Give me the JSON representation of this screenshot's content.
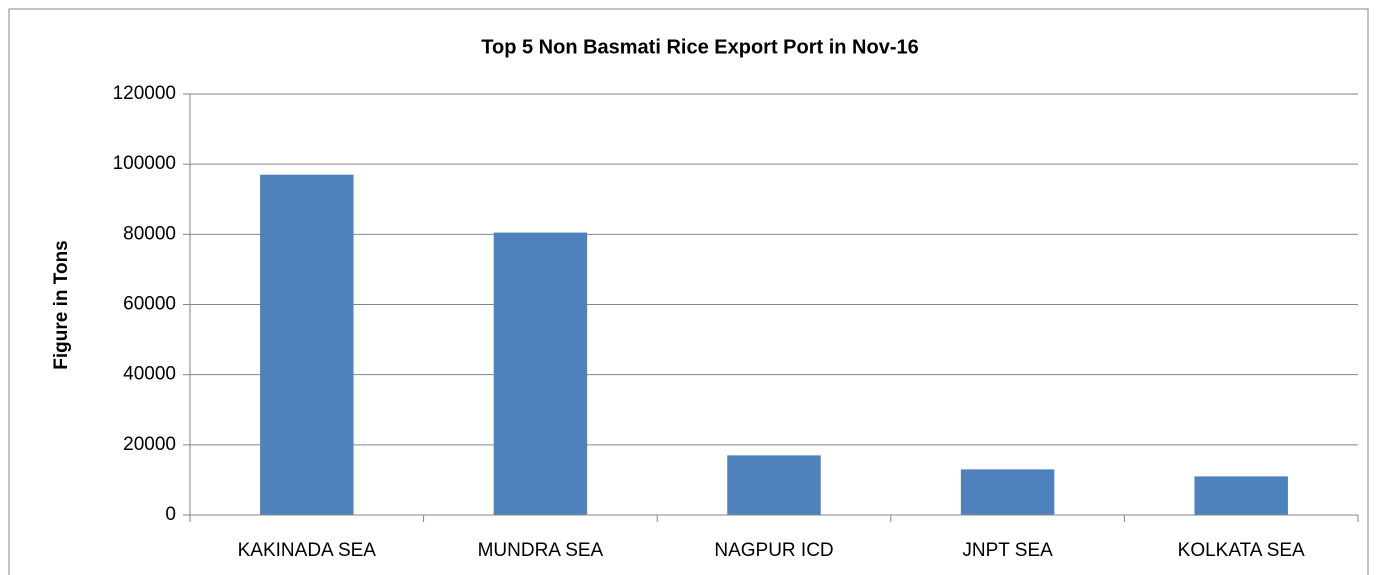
{
  "chart_data": {
    "type": "bar",
    "title": "Top 5 Non Basmati Rice Export Port in Nov-16",
    "y_label": "Figure in Tons",
    "categories": [
      "KAKINADA SEA",
      "MUNDRA SEA",
      "NAGPUR ICD",
      "JNPT SEA",
      "KOLKATA SEA"
    ],
    "values": [
      97000,
      80500,
      17000,
      13000,
      11000
    ],
    "color": "#4f81bd",
    "ylim": [
      0,
      120000
    ],
    "yticks": [
      0,
      20000,
      40000,
      60000,
      80000,
      100000,
      120000
    ],
    "grid": true
  }
}
